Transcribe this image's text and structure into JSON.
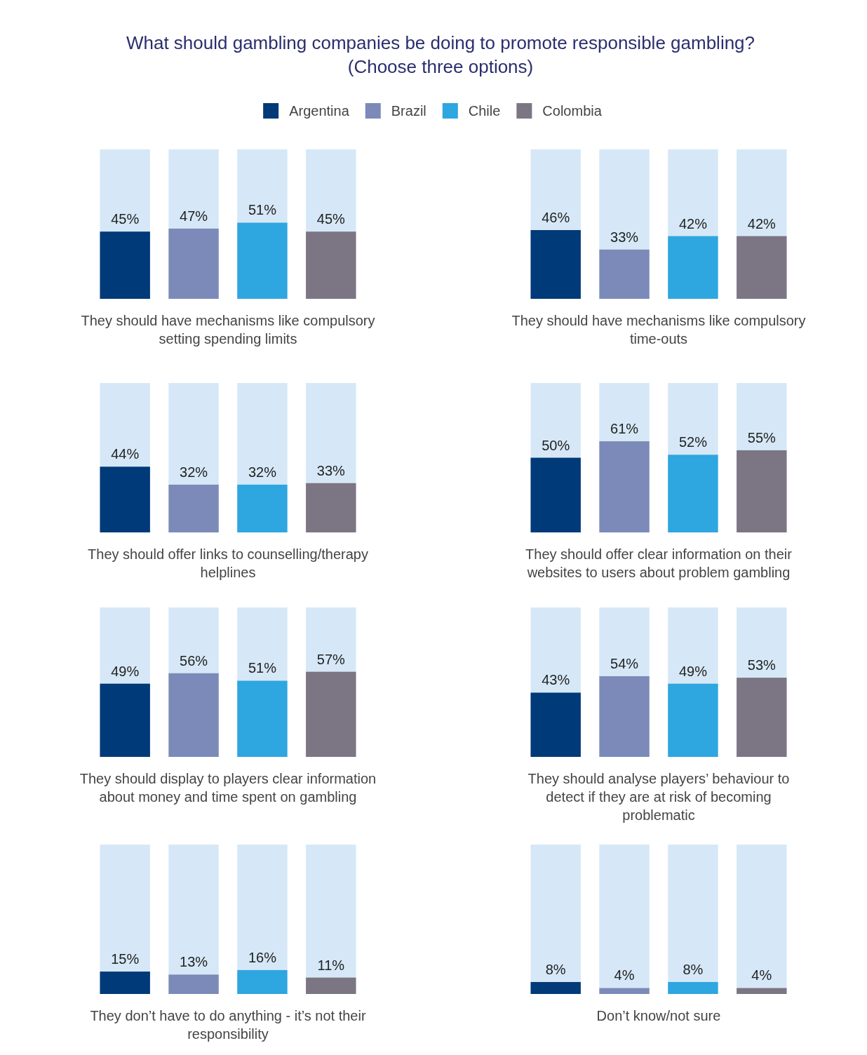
{
  "chart_data": [
    {
      "type": "bar",
      "title": "What should gambling companies be doing to promote responsible gambling? (Choose three options)",
      "legend": "top",
      "categories": [
        null
      ],
      "ylim": [
        0,
        100
      ],
      "xlabel": "They should have mechanisms like compulsory setting spending limits",
      "series": [
        {
          "name": "Argentina",
          "color": "#003a78",
          "values": [
            45
          ],
          "value_labels": [
            "45%"
          ]
        },
        {
          "name": "Brazil",
          "color": "#7b8ab8",
          "values": [
            47
          ],
          "value_labels": [
            "47%"
          ]
        },
        {
          "name": "Chile",
          "color": "#2ea6df",
          "values": [
            51
          ],
          "value_labels": [
            "51%"
          ]
        },
        {
          "name": "Colombia",
          "color": "#7b7584",
          "values": [
            45
          ],
          "value_labels": [
            "45%"
          ]
        }
      ]
    },
    {
      "type": "bar",
      "categories": [
        null
      ],
      "ylim": [
        0,
        100
      ],
      "xlabel": "They should have mechanisms like compulsory time-outs",
      "series": [
        {
          "color": "#003a78",
          "values": [
            46
          ],
          "value_labels": [
            "46%"
          ]
        },
        {
          "color": "#7b8ab8",
          "values": [
            33
          ],
          "value_labels": [
            "33%"
          ]
        },
        {
          "color": "#2ea6df",
          "values": [
            42
          ],
          "value_labels": [
            "42%"
          ]
        },
        {
          "color": "#7b7584",
          "values": [
            42
          ],
          "value_labels": [
            "42%"
          ]
        }
      ]
    },
    {
      "type": "bar",
      "categories": [
        null
      ],
      "ylim": [
        0,
        100
      ],
      "xlabel": "They should offer links to counselling/therapy helplines",
      "series": [
        {
          "color": "#003a78",
          "values": [
            44
          ],
          "value_labels": [
            "44%"
          ]
        },
        {
          "color": "#7b8ab8",
          "values": [
            32
          ],
          "value_labels": [
            "32%"
          ]
        },
        {
          "color": "#2ea6df",
          "values": [
            32
          ],
          "value_labels": [
            "32%"
          ]
        },
        {
          "color": "#7b7584",
          "values": [
            33
          ],
          "value_labels": [
            "33%"
          ]
        }
      ]
    },
    {
      "type": "bar",
      "categories": [
        null
      ],
      "ylim": [
        0,
        100
      ],
      "xlabel": "They should offer clear information on their websites to users about problem gambling",
      "series": [
        {
          "color": "#003a78",
          "values": [
            50
          ],
          "value_labels": [
            "50%"
          ]
        },
        {
          "color": "#7b8ab8",
          "values": [
            61
          ],
          "value_labels": [
            "61%"
          ]
        },
        {
          "color": "#2ea6df",
          "values": [
            52
          ],
          "value_labels": [
            "52%"
          ]
        },
        {
          "color": "#7b7584",
          "values": [
            55
          ],
          "value_labels": [
            "55%"
          ]
        }
      ]
    },
    {
      "type": "bar",
      "categories": [
        null
      ],
      "ylim": [
        0,
        100
      ],
      "xlabel": "They should display to players clear information about money and time spent on gambling",
      "series": [
        {
          "color": "#003a78",
          "values": [
            49
          ],
          "value_labels": [
            "49%"
          ]
        },
        {
          "color": "#7b8ab8",
          "values": [
            56
          ],
          "value_labels": [
            "56%"
          ]
        },
        {
          "color": "#2ea6df",
          "values": [
            51
          ],
          "value_labels": [
            "51%"
          ]
        },
        {
          "color": "#7b7584",
          "values": [
            57
          ],
          "value_labels": [
            "57%"
          ]
        }
      ]
    },
    {
      "type": "bar",
      "categories": [
        null
      ],
      "ylim": [
        0,
        100
      ],
      "xlabel": "They should analyse players’ behaviour to detect if they are at risk of becoming problematic",
      "series": [
        {
          "color": "#003a78",
          "values": [
            43
          ],
          "value_labels": [
            "43%"
          ]
        },
        {
          "color": "#7b8ab8",
          "values": [
            54
          ],
          "value_labels": [
            "54%"
          ]
        },
        {
          "color": "#2ea6df",
          "values": [
            49
          ],
          "value_labels": [
            "49%"
          ]
        },
        {
          "color": "#7b7584",
          "values": [
            53
          ],
          "value_labels": [
            "53%"
          ]
        }
      ]
    },
    {
      "type": "bar",
      "categories": [
        null
      ],
      "ylim": [
        0,
        100
      ],
      "xlabel": "They don’t have to do anything - it’s not their responsibility",
      "series": [
        {
          "color": "#003a78",
          "values": [
            15
          ],
          "value_labels": [
            "15%"
          ]
        },
        {
          "color": "#7b8ab8",
          "values": [
            13
          ],
          "value_labels": [
            "13%"
          ]
        },
        {
          "color": "#2ea6df",
          "values": [
            16
          ],
          "value_labels": [
            "16%"
          ]
        },
        {
          "color": "#7b7584",
          "values": [
            11
          ],
          "value_labels": [
            "11%"
          ]
        }
      ]
    },
    {
      "type": "bar",
      "categories": [
        null
      ],
      "ylim": [
        0,
        100
      ],
      "xlabel": "Don’t know/not sure",
      "series": [
        {
          "color": "#003a78",
          "values": [
            8
          ],
          "value_labels": [
            "8%"
          ]
        },
        {
          "color": "#7b8ab8",
          "values": [
            4
          ],
          "value_labels": [
            "4%"
          ]
        },
        {
          "color": "#2ea6df",
          "values": [
            8
          ],
          "value_labels": [
            "8%"
          ]
        },
        {
          "color": "#7b7584",
          "values": [
            4
          ],
          "value_labels": [
            "4%"
          ]
        }
      ]
    }
  ]
}
